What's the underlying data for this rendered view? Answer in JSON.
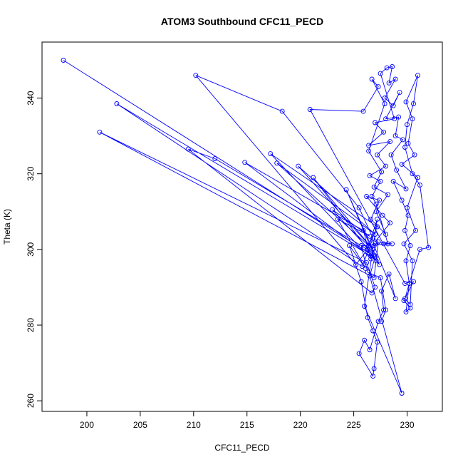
{
  "chart_data": {
    "type": "line",
    "title": "ATOM3 Southbound CFC11_PECD",
    "xlabel": "CFC11_PECD",
    "ylabel": "Theta (K)",
    "xlim": [
      195.8,
      233.3
    ],
    "ylim": [
      257.2,
      354.8
    ],
    "xticks": [
      200,
      205,
      210,
      215,
      220,
      225,
      230
    ],
    "yticks": [
      260,
      280,
      300,
      320,
      340
    ],
    "grid": false,
    "markers": "open-circle",
    "line_color": "#0000ff",
    "series": [
      {
        "points": [
          [
            197.8,
            350.0
          ],
          [
            227.0,
            298.0
          ],
          [
            226.5,
            293.0
          ],
          [
            229.5,
            262.0
          ],
          [
            226.0,
            285.0
          ],
          [
            227.2,
            308.0
          ],
          [
            226.3,
            300.0
          ],
          [
            225.2,
            296.0
          ],
          [
            210.2,
            346.0
          ],
          [
            218.3,
            336.5
          ],
          [
            225.5,
            311.0
          ],
          [
            226.8,
            303.0
          ],
          [
            225.8,
            295.5
          ],
          [
            202.8,
            338.5
          ],
          [
            226.6,
            298.3
          ],
          [
            227.3,
            302.0
          ],
          [
            226.9,
            292.5
          ],
          [
            201.2,
            331.0
          ],
          [
            226.2,
            296.5
          ],
          [
            227.0,
            290.0
          ],
          [
            226.7,
            288.5
          ],
          [
            209.5,
            326.5
          ],
          [
            212.0,
            324.0
          ],
          [
            226.0,
            300.5
          ],
          [
            227.1,
            297.0
          ],
          [
            214.8,
            323.0
          ],
          [
            225.9,
            305.0
          ],
          [
            226.6,
            297.5
          ],
          [
            217.2,
            325.3
          ],
          [
            227.2,
            306.0
          ],
          [
            226.4,
            301.0
          ],
          [
            217.8,
            322.8
          ],
          [
            227.0,
            304.0
          ],
          [
            219.8,
            322.0
          ],
          [
            226.8,
            300.0
          ],
          [
            221.2,
            319.0
          ],
          [
            227.4,
            296.0
          ],
          [
            224.3,
            315.8
          ],
          [
            226.9,
            298.5
          ],
          [
            223.0,
            310.5
          ],
          [
            226.5,
            303.5
          ],
          [
            223.5,
            308.0
          ],
          [
            226.1,
            295.0
          ],
          [
            224.6,
            301.0
          ],
          [
            225.7,
            291.5
          ],
          [
            226.3,
            282.0
          ],
          [
            226.8,
            278.5
          ],
          [
            227.2,
            275.5
          ],
          [
            226.9,
            268.5
          ],
          [
            226.8,
            266.5
          ],
          [
            225.5,
            272.5
          ],
          [
            226.0,
            276.0
          ],
          [
            226.5,
            273.5
          ],
          [
            227.3,
            281.0
          ],
          [
            227.8,
            284.0
          ],
          [
            227.6,
            289.0
          ],
          [
            228.3,
            293.5
          ],
          [
            228.9,
            287.0
          ],
          [
            226.9,
            301.0
          ],
          [
            227.8,
            301.5
          ],
          [
            228.2,
            301.5
          ],
          [
            227.1,
            312.0
          ],
          [
            226.7,
            314.0
          ],
          [
            227.5,
            318.0
          ],
          [
            226.5,
            319.5
          ],
          [
            228.0,
            322.0
          ],
          [
            227.2,
            325.0
          ],
          [
            228.4,
            328.5
          ],
          [
            226.4,
            327.5
          ],
          [
            227.8,
            331.0
          ],
          [
            227.0,
            333.5
          ],
          [
            228.8,
            334.5
          ],
          [
            227.5,
            346.5
          ],
          [
            228.1,
            348.0
          ],
          [
            228.6,
            348.3
          ],
          [
            228.3,
            344.0
          ],
          [
            228.9,
            345.0
          ],
          [
            227.9,
            340.0
          ],
          [
            228.7,
            338.0
          ],
          [
            229.3,
            341.5
          ],
          [
            228.0,
            334.5
          ],
          [
            229.2,
            335.0
          ],
          [
            228.9,
            330.0
          ],
          [
            229.6,
            329.0
          ],
          [
            228.5,
            325.0
          ],
          [
            229.0,
            321.0
          ],
          [
            229.9,
            316.0
          ],
          [
            228.7,
            318.0
          ],
          [
            229.5,
            313.0
          ],
          [
            230.1,
            309.0
          ],
          [
            229.8,
            305.0
          ],
          [
            230.3,
            301.0
          ],
          [
            229.9,
            297.0
          ],
          [
            230.2,
            291.0
          ],
          [
            229.8,
            287.0
          ],
          [
            230.3,
            285.5
          ],
          [
            230.5,
            297.0
          ],
          [
            229.7,
            301.5
          ],
          [
            230.8,
            305.0
          ],
          [
            230.0,
            311.0
          ],
          [
            231.0,
            319.0
          ],
          [
            229.5,
            322.5
          ],
          [
            230.7,
            325.0
          ],
          [
            230.1,
            328.0
          ],
          [
            230.5,
            334.5
          ],
          [
            229.9,
            339.0
          ],
          [
            231.0,
            346.0
          ],
          [
            230.6,
            338.5
          ],
          [
            230.0,
            333.0
          ],
          [
            229.8,
            327.0
          ],
          [
            230.5,
            320.0
          ],
          [
            231.2,
            317.0
          ],
          [
            232.0,
            300.5
          ],
          [
            231.2,
            300.0
          ],
          [
            230.2,
            291.0
          ],
          [
            229.9,
            283.5
          ],
          [
            230.3,
            284.5
          ],
          [
            229.7,
            286.5
          ],
          [
            230.6,
            291.5
          ],
          [
            229.8,
            291.0
          ],
          [
            220.9,
            337.0
          ],
          [
            225.9,
            336.5
          ],
          [
            227.3,
            343.0
          ],
          [
            226.7,
            345.0
          ],
          [
            227.9,
            338.5
          ],
          [
            226.4,
            326.0
          ],
          [
            227.6,
            320.5
          ],
          [
            226.9,
            316.5
          ],
          [
            228.2,
            314.5
          ],
          [
            227.1,
            310.0
          ],
          [
            228.0,
            304.0
          ],
          [
            226.6,
            308.0
          ],
          [
            227.4,
            313.0
          ],
          [
            226.2,
            314.0
          ],
          [
            227.7,
            309.0
          ],
          [
            228.4,
            307.0
          ],
          [
            227.0,
            302.0
          ],
          [
            228.6,
            301.5
          ],
          [
            225.7,
            301.0
          ],
          [
            226.3,
            294.0
          ],
          [
            227.5,
            292.5
          ],
          [
            228.0,
            284.0
          ],
          [
            227.6,
            281.0
          ]
        ]
      }
    ]
  }
}
